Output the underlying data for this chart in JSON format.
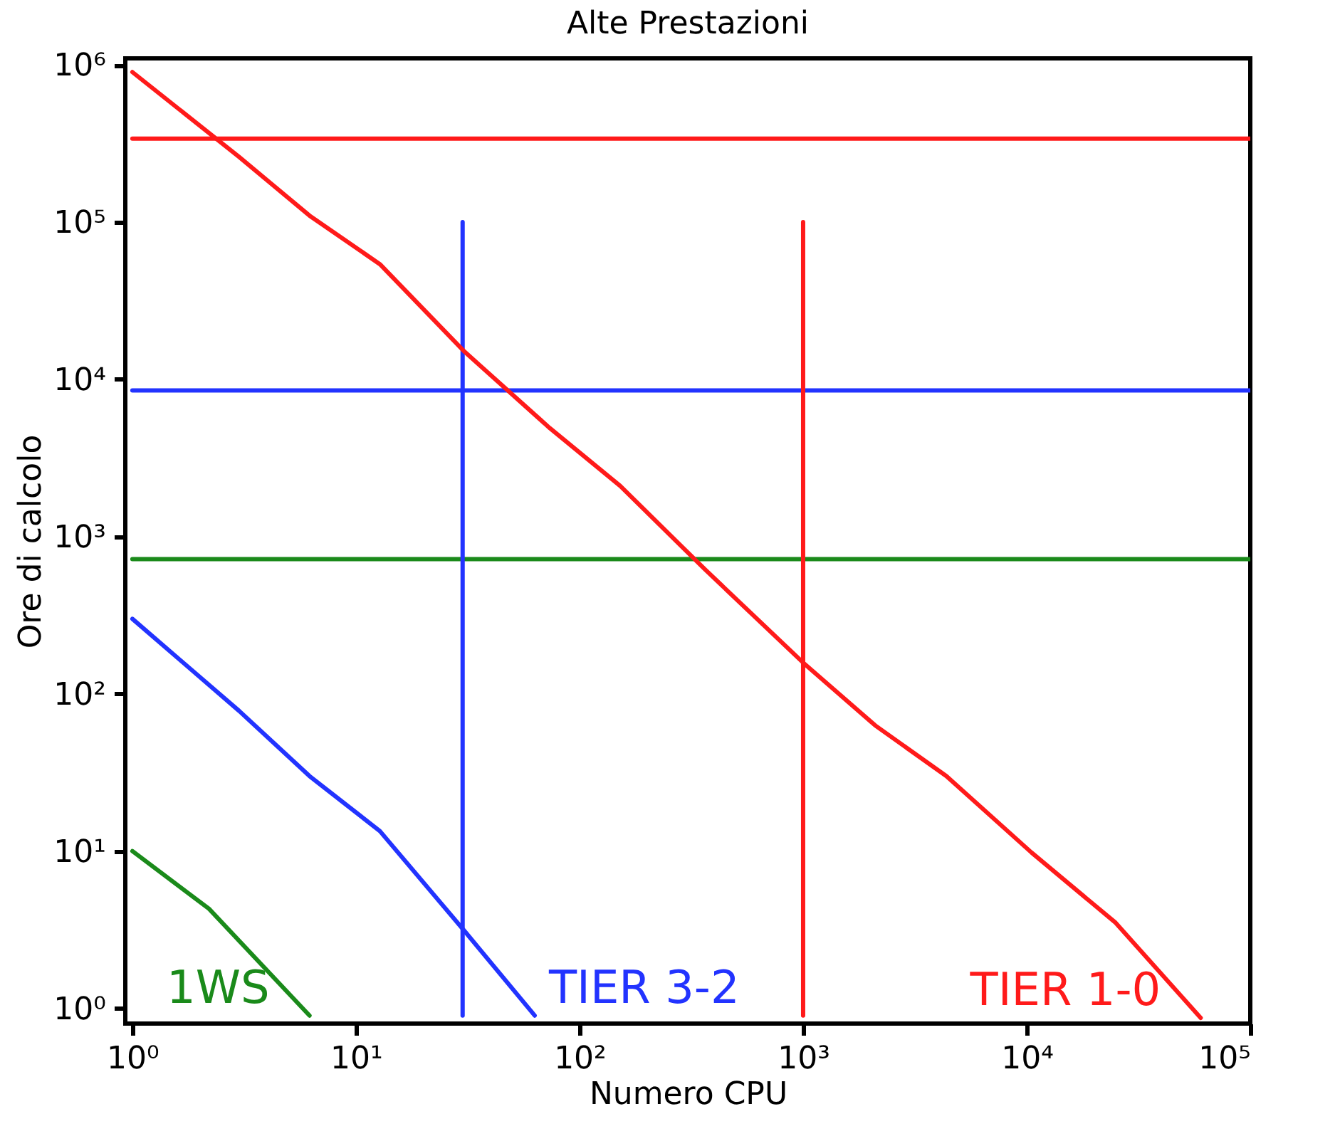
{
  "chart_data": {
    "type": "line",
    "title": "Alte Prestazioni",
    "xlabel": "Numero CPU",
    "ylabel": "Ore di calcolo",
    "log": "xy",
    "grid": false,
    "marker": "none",
    "line_style": "solid",
    "xlim": [
      0.93,
      100000
    ],
    "ylim": [
      0.8,
      1100000
    ],
    "xticks": [
      {
        "value": 1,
        "label": "10⁰"
      },
      {
        "value": 10,
        "label": "10¹"
      },
      {
        "value": 100,
        "label": "10²"
      },
      {
        "value": 1000,
        "label": "10³"
      },
      {
        "value": 10000,
        "label": "10⁴"
      },
      {
        "value": 100000,
        "label": "10⁵"
      }
    ],
    "yticks": [
      {
        "value": 1,
        "label": "10⁰"
      },
      {
        "value": 10,
        "label": "10¹"
      },
      {
        "value": 100,
        "label": "10²"
      },
      {
        "value": 1000,
        "label": "10³"
      },
      {
        "value": 10000,
        "label": "10⁴"
      },
      {
        "value": 100000,
        "label": "10⁵"
      },
      {
        "value": 1000000,
        "label": "10⁶"
      }
    ],
    "series": [
      {
        "color": "#ff1a1a",
        "x": [
          1,
          100000
        ],
        "values": [
          340000,
          340000
        ]
      },
      {
        "color": "#2233ff",
        "x": [
          1,
          100000
        ],
        "values": [
          8500,
          8500
        ]
      },
      {
        "color": "#1a8a1a",
        "x": [
          1,
          100000
        ],
        "values": [
          720,
          720
        ]
      },
      {
        "color": "#2233ff",
        "x": [
          30,
          30
        ],
        "values": [
          0.9,
          100000
        ]
      },
      {
        "color": "#ff1a1a",
        "x": [
          1000,
          1000
        ],
        "values": [
          0.9,
          100000
        ]
      },
      {
        "name": "1WS",
        "color": "#1a8a1a",
        "x": [
          1,
          2.2,
          6.2
        ],
        "values": [
          10,
          4.3,
          0.9
        ]
      },
      {
        "name": "TIER 3-2",
        "color": "#2233ff",
        "x": [
          1,
          3,
          6.2,
          12.8,
          30.6,
          63
        ],
        "values": [
          300,
          78,
          30,
          13.4,
          3.1,
          0.9
        ]
      },
      {
        "name": "TIER 1-0",
        "color": "#ff1a1a",
        "x": [
          1,
          3,
          6.2,
          12.8,
          30.6,
          73.6,
          152,
          366,
          1000,
          2100,
          4370,
          10500,
          25000,
          60000
        ],
        "values": [
          900000,
          260000,
          110000,
          54000,
          15000,
          4900,
          2100,
          614,
          158,
          63,
          30,
          9.8,
          3.5,
          0.87
        ]
      }
    ]
  }
}
